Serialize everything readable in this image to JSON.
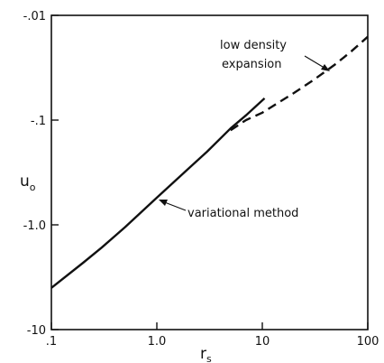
{
  "chart_data": {
    "type": "line",
    "title": "",
    "xlabel": "r",
    "xlabel_subscript": "s",
    "ylabel": "u",
    "ylabel_subscript": "o",
    "x_scale": "log",
    "y_scale": "log",
    "y_axis_inverted": true,
    "xlim": [
      0.1,
      100
    ],
    "ylim": [
      -10,
      -0.01
    ],
    "x_tick_labels": [
      ".1",
      "1.0",
      "10",
      "100"
    ],
    "y_tick_labels": [
      "-.01",
      "-.1",
      "-1.0",
      "-10"
    ],
    "grid": false,
    "series": [
      {
        "style": "solid",
        "annotation": "variational method",
        "x": [
          0.1,
          0.2,
          0.3,
          0.5,
          1.0,
          2.0,
          3.0,
          5.0,
          7.0,
          10.5
        ],
        "y": [
          -4.0,
          -2.3,
          -1.65,
          -1.05,
          -0.55,
          -0.29,
          -0.2,
          -0.12,
          -0.09,
          -0.062
        ]
      },
      {
        "style": "dashed",
        "annotation": "low density expansion",
        "x": [
          5.0,
          7.0,
          10.0,
          20.0,
          30.0,
          50.0,
          70.0,
          100.0
        ],
        "y": [
          -0.125,
          -0.1,
          -0.085,
          -0.055,
          -0.042,
          -0.029,
          -0.022,
          -0.016
        ]
      }
    ]
  }
}
